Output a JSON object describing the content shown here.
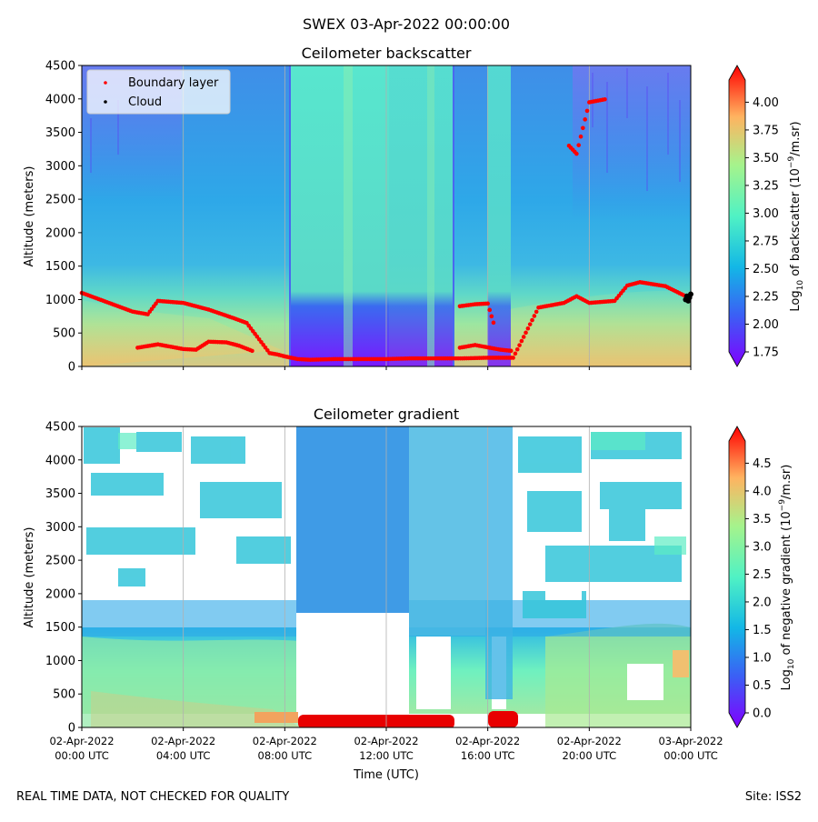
{
  "suptitle": "SWEX 03-Apr-2022 00:00:00",
  "footer": {
    "left": "REAL TIME DATA, NOT CHECKED FOR QUALITY",
    "right": "Site: ISS2"
  },
  "chart_data": [
    {
      "type": "heatmap",
      "title": "Ceilometer backscatter",
      "ylabel": "Altitude (meters)",
      "xlabel": "",
      "ylim": [
        0,
        4500
      ],
      "yticks": [
        0,
        500,
        1000,
        1500,
        2000,
        2500,
        3000,
        3500,
        4000,
        4500
      ],
      "xlim_hours": [
        0,
        24
      ],
      "grid": "vertical",
      "colormap": "rainbow",
      "colorbar": {
        "label_prefix": "Log",
        "label_sub": "10",
        "label_mid": " of backscatter (10",
        "label_sup": "−9",
        "label_suffix": "/m.sr)",
        "min": 1.75,
        "max": 4.2,
        "ticks": [
          "1.75",
          "2.00",
          "2.25",
          "2.50",
          "2.75",
          "3.00",
          "3.25",
          "3.50",
          "3.75",
          "4.00"
        ]
      },
      "legend": {
        "placement": "top-left",
        "entries": [
          {
            "label": "Boundary layer",
            "color": "#ff0000"
          },
          {
            "label": "Cloud",
            "color": "#000000"
          }
        ]
      },
      "series": [
        {
          "name": "Boundary layer",
          "segments": [
            {
              "hours": [
                0,
                1,
                2,
                2.6,
                3,
                4,
                5,
                6,
                6.5,
                7.4,
                7.7,
                8,
                8.5,
                9,
                10,
                11,
                12,
                13,
                14,
                15,
                16,
                17,
                18,
                19,
                19.5,
                20,
                21,
                21.5,
                22,
                23,
                23.8
              ],
              "altitude": [
                1100,
                960,
                820,
                780,
                980,
                950,
                850,
                720,
                650,
                200,
                180,
                150,
                110,
                100,
                110,
                110,
                110,
                120,
                120,
                120,
                130,
                130,
                880,
                950,
                1050,
                950,
                980,
                1210,
                1260,
                1200,
                1050
              ]
            },
            {
              "hours": [
                2.2,
                3,
                4,
                4.5,
                5,
                5.7,
                6.2,
                6.8
              ],
              "altitude": [
                280,
                330,
                260,
                250,
                370,
                360,
                310,
                220
              ]
            },
            {
              "hours": [
                14.9,
                15.5,
                16,
                16.3
              ],
              "altitude": [
                900,
                930,
                940,
                560
              ]
            },
            {
              "hours": [
                14.9,
                15.5,
                16.5,
                17
              ],
              "altitude": [
                280,
                320,
                250,
                230
              ]
            },
            {
              "hours": [
                19.2,
                19.5,
                20,
                20.7
              ],
              "altitude": [
                3300,
                3180,
                3950,
                4000
              ]
            }
          ]
        },
        {
          "name": "Cloud",
          "hours": [
            23.8,
            23.85,
            23.9,
            23.95,
            24
          ],
          "altitude": [
            1000,
            1050,
            980,
            1030,
            1080
          ]
        }
      ]
    },
    {
      "type": "heatmap",
      "title": "Ceilometer gradient",
      "ylabel": "Altitude (meters)",
      "xlabel": "Time (UTC)",
      "ylim": [
        0,
        4500
      ],
      "yticks": [
        0,
        500,
        1000,
        1500,
        2000,
        2500,
        3000,
        3500,
        4000,
        4500
      ],
      "xlim_hours": [
        0,
        24
      ],
      "xticks": [
        {
          "hour": 0,
          "date": "02-Apr-2022",
          "time": "00:00 UTC"
        },
        {
          "hour": 4,
          "date": "02-Apr-2022",
          "time": "04:00 UTC"
        },
        {
          "hour": 8,
          "date": "02-Apr-2022",
          "time": "08:00 UTC"
        },
        {
          "hour": 12,
          "date": "02-Apr-2022",
          "time": "12:00 UTC"
        },
        {
          "hour": 16,
          "date": "02-Apr-2022",
          "time": "16:00 UTC"
        },
        {
          "hour": 20,
          "date": "02-Apr-2022",
          "time": "20:00 UTC"
        },
        {
          "hour": 24,
          "date": "03-Apr-2022",
          "time": "00:00 UTC"
        }
      ],
      "grid": "vertical",
      "colormap": "rainbow",
      "colorbar": {
        "label_prefix": "Log",
        "label_sub": "10",
        "label_mid": " of negative gradient (10",
        "label_sup": "−9",
        "label_suffix": "/m.sr)",
        "min": 0,
        "max": 4.9,
        "ticks": [
          "0.0",
          "0.5",
          "1.0",
          "1.5",
          "2.0",
          "2.5",
          "3.0",
          "3.5",
          "4.0",
          "4.5"
        ]
      }
    }
  ]
}
